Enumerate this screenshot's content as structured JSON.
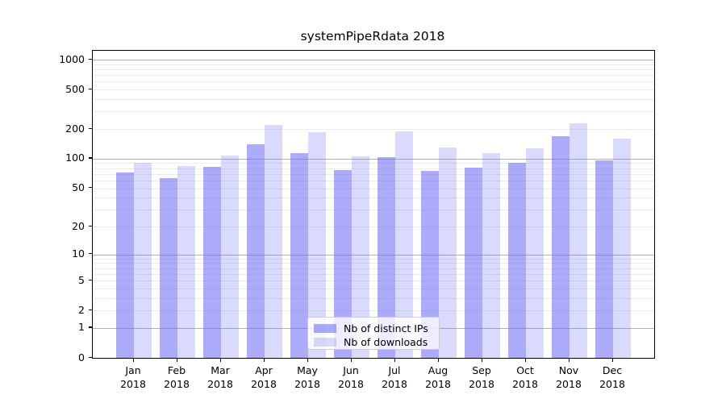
{
  "chart_data": {
    "type": "bar",
    "title": "systemPipeRdata 2018",
    "categories": [
      "Jan 2018",
      "Feb 2018",
      "Mar 2018",
      "Apr 2018",
      "May 2018",
      "Jun 2018",
      "Jul 2018",
      "Aug 2018",
      "Sep 2018",
      "Oct 2018",
      "Nov 2018",
      "Dec 2018"
    ],
    "series": [
      {
        "name": "Nb of distinct IPs",
        "color": "rgba(102,102,245,0.55)",
        "values": [
          73,
          64,
          83,
          140,
          115,
          77,
          104,
          75,
          81,
          90,
          170,
          96
        ]
      },
      {
        "name": "Nb of downloads",
        "color": "rgba(102,102,245,0.24)",
        "values": [
          90,
          84,
          108,
          220,
          185,
          105,
          190,
          130,
          115,
          128,
          230,
          160
        ]
      }
    ],
    "xlabel": "",
    "ylabel": "",
    "yscale": "log10(value+1)",
    "ylim": [
      0,
      1230
    ],
    "yticks": [
      1000,
      500,
      200,
      100,
      50,
      20,
      10,
      5,
      2,
      1,
      0
    ],
    "major_gridlines": [
      1000,
      100,
      10,
      1
    ],
    "minor_gridlines": [
      2,
      3,
      4,
      5,
      6,
      7,
      8,
      9,
      20,
      30,
      40,
      50,
      60,
      70,
      80,
      90,
      200,
      300,
      400,
      500,
      600,
      700,
      800,
      900
    ],
    "grid": true,
    "legend_position": "lower center"
  },
  "colors": {
    "major_grid": "#b3b3b3",
    "minor_grid": "#ececec",
    "spine": "#000000",
    "text": "#000000",
    "legend_border": "#cccccc",
    "legend_bg": "rgba(255,255,255,0.8)"
  }
}
